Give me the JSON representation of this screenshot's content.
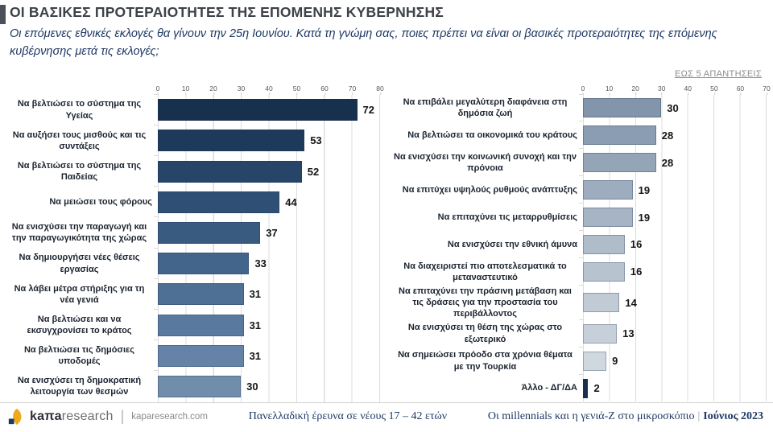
{
  "header": {
    "title": "ΟΙ ΒΑΣΙΚΕΣ ΠΡΟΤΕΡΑΙΟΤΗΤΕΣ ΤΗΣ ΕΠΟΜΕΝΗΣ ΚΥΒΕΡΝΗΣΗΣ",
    "subtitle": "Οι επόμενες εθνικές εκλογές θα γίνουν την 25η Ιουνίου. Κατά τη γνώμη σας, ποιες πρέπει να είναι οι βασικές προτεραιότητες της επόμενης κυβέρνησης μετά τις εκλογές;",
    "note": "ΕΩΣ 5 ΑΠΑΝΤΗΣΕΙΣ"
  },
  "chart_data": [
    {
      "type": "bar",
      "orientation": "horizontal",
      "title": "",
      "xlabel": "",
      "ylabel": "",
      "xlim": [
        0,
        80
      ],
      "ticks": [
        0,
        10,
        20,
        30,
        40,
        50,
        60,
        70,
        80
      ],
      "grid": true,
      "categories": [
        "Να βελτιώσει το σύστημα της Υγείας",
        "Να αυξήσει τους μισθούς και τις συντάξεις",
        "Να βελτιώσει το σύστημα της Παιδείας",
        "Να μειώσει τους φόρους",
        "Να ενισχύσει την παραγωγή και την παραγωγικότητα της χώρας",
        "Να δημιουργήσει νέες θέσεις εργασίας",
        "Να λάβει μέτρα στήριξης για τη νέα γενιά",
        "Να βελτιώσει και να εκσυγχρονίσει το κράτος",
        "Να βελτιώσει τις δημόσιες υποδομές",
        "Να ενισχύσει τη δημοκρατική λειτουργία των θεσμών"
      ],
      "values": [
        72,
        53,
        52,
        44,
        37,
        33,
        31,
        31,
        31,
        30
      ],
      "bar_colors": [
        "#17304E",
        "#1E3A5B",
        "#274568",
        "#2F5074",
        "#3A5B80",
        "#44658B",
        "#4F7095",
        "#597A9E",
        "#6483A6",
        "#708DAC"
      ]
    },
    {
      "type": "bar",
      "orientation": "horizontal",
      "title": "",
      "xlabel": "",
      "ylabel": "",
      "xlim": [
        0,
        70
      ],
      "ticks": [
        0,
        10,
        20,
        30,
        40,
        50,
        60,
        70
      ],
      "grid": true,
      "categories": [
        "Να επιβάλει μεγαλύτερη διαφάνεια στη δημόσια ζωή",
        "Να βελτιώσει τα οικονομικά του κράτους",
        "Να ενισχύσει την κοινωνική συνοχή και την πρόνοια",
        "Να επιτύχει υψηλούς ρυθμούς ανάπτυξης",
        "Να επιταχύνει τις μεταρρυθμίσεις",
        "Να ενισχύσει την εθνική άμυνα",
        "Να διαχειριστεί πιο αποτελεσματικά το μεταναστευτικό",
        "Να επιταχύνει την πράσινη μετάβαση και τις δράσεις για την προστασία του περιβάλλοντος",
        "Να ενισχύσει τη θέση της χώρας στο εξωτερικό",
        "Να σημειώσει πρόοδο στα χρόνια θέματα με την Τουρκία",
        "Άλλο - ΔΓ/ΔΑ"
      ],
      "values": [
        30,
        28,
        28,
        19,
        19,
        16,
        16,
        14,
        13,
        9,
        2
      ],
      "bar_colors": [
        "#8295AB",
        "#8B9DB2",
        "#94A5B8",
        "#9DACBE",
        "#A6B4C4",
        "#AFBCCA",
        "#B8C3D0",
        "#C0CBD5",
        "#C7D0DA",
        "#CFD7DF",
        "#17304E"
      ]
    }
  ],
  "footer": {
    "logo_bold": "kaπa",
    "logo_light": "research",
    "logo_domain": "kaparesearch.com",
    "center": "Πανελλαδική έρευνα σε νέους 17 – 42 ετών",
    "right_main": "Οι millennials και η γενιά-Z στο μικροσκόπιο",
    "right_sep": "|",
    "right_date": "Ιούνιος 2023"
  },
  "colors": {
    "title_text": "#3d4148",
    "title_accent": "#4a5058",
    "subtitle_text": "#1f3864",
    "note_text": "#8c8c8c",
    "gridline": "#dcdcdc",
    "tick_text": "#595959",
    "category_text": "#1b2430",
    "value_text": "#141414",
    "bar_darkest": "#17304E",
    "bar_lightest": "#CFD7DF",
    "footer_text": "#1f3864",
    "logo_yellow": "#F0A81C",
    "logo_navy": "#1F3864"
  }
}
